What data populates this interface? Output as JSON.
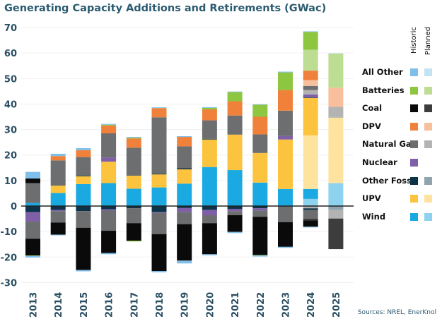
{
  "chart_data": {
    "type": "bar",
    "stacked": true,
    "title": "Generating Capacity Additions and Retirements (GWac)",
    "xlabel": "",
    "ylabel": "",
    "ylim": [
      -30,
      70
    ],
    "yticks": [
      -30,
      -20,
      -10,
      0,
      10,
      20,
      30,
      40,
      50,
      60,
      70
    ],
    "grid": true,
    "legend_position": "right",
    "legend_columns": [
      "Historic",
      "Planned"
    ],
    "categories": [
      "2013",
      "2014",
      "2015",
      "2016",
      "2017",
      "2018",
      "2019",
      "2020",
      "2021",
      "2022",
      "2023",
      "2024",
      "2025"
    ],
    "technologies": [
      {
        "name": "All Other",
        "historic_color": "#7fbfea",
        "planned_color": "#c3e3f5"
      },
      {
        "name": "Batteries",
        "historic_color": "#8dc63f",
        "planned_color": "#bddd92"
      },
      {
        "name": "Coal",
        "historic_color": "#0a0a0a",
        "planned_color": "#3d3d3d"
      },
      {
        "name": "DPV",
        "historic_color": "#f0813a",
        "planned_color": "#f7bf9b"
      },
      {
        "name": "Natural Gas",
        "historic_color": "#6d6e70",
        "planned_color": "#b3b3b3"
      },
      {
        "name": "Nuclear",
        "historic_color": "#7f5fa8",
        "planned_color": null
      },
      {
        "name": "Other Fossil",
        "historic_color": "#0d3349",
        "planned_color": "#8ea4ae"
      },
      {
        "name": "UPV",
        "historic_color": "#fcc43e",
        "planned_color": "#fde39e"
      },
      {
        "name": "Wind",
        "historic_color": "#1aa9e1",
        "planned_color": "#8dd3f0"
      }
    ],
    "additions": [
      {
        "tech": "Wind",
        "status": "Planned",
        "values": [
          0,
          0,
          0,
          0,
          0,
          0,
          0,
          0,
          0,
          0,
          0,
          2.8,
          9.0
        ]
      },
      {
        "tech": "Wind",
        "status": "Historic",
        "values": [
          1.2,
          5.1,
          8.6,
          9.0,
          6.8,
          7.3,
          8.8,
          15.3,
          14.1,
          9.2,
          6.7,
          3.9,
          0
        ]
      },
      {
        "tech": "UPV",
        "status": "Planned",
        "values": [
          0,
          0,
          0,
          0,
          0,
          0,
          0,
          0,
          0,
          0,
          0,
          21.0,
          25.7
        ]
      },
      {
        "tech": "UPV",
        "status": "Historic",
        "values": [
          0,
          2.9,
          3.1,
          8.4,
          5.1,
          5.1,
          5.6,
          10.8,
          13.9,
          11.6,
          19.4,
          14.7,
          0
        ]
      },
      {
        "tech": "Other Fossil",
        "status": "Planned",
        "values": [
          0,
          0,
          0,
          0,
          0,
          0,
          0,
          0,
          0,
          0,
          0,
          0,
          0.2
        ]
      },
      {
        "tech": "Other Fossil",
        "status": "Historic",
        "values": [
          0,
          0,
          0.3,
          0,
          0,
          0.2,
          0.4,
          0.2,
          0,
          0,
          0,
          0.2,
          0
        ]
      },
      {
        "tech": "Nuclear",
        "status": "Historic",
        "values": [
          0,
          0,
          0,
          1.6,
          0,
          0,
          0,
          0,
          0,
          0,
          1.4,
          1.2,
          0
        ]
      },
      {
        "tech": "Natural Gas",
        "status": "Planned",
        "values": [
          0,
          0,
          0,
          0,
          0,
          0,
          0,
          0,
          0,
          0,
          0,
          1.7,
          4.0
        ]
      },
      {
        "tech": "Natural Gas",
        "status": "Historic",
        "values": [
          7.8,
          9.9,
          7.2,
          9.5,
          11.0,
          22.2,
          8.6,
          7.3,
          7.5,
          7.3,
          9.9,
          1.6,
          0
        ]
      },
      {
        "tech": "Coal",
        "status": "Historic",
        "values": [
          1.8,
          0,
          0,
          0,
          0,
          0,
          0,
          0,
          0,
          0,
          0,
          0,
          0
        ]
      },
      {
        "tech": "DPV",
        "status": "Planned",
        "values": [
          0,
          0,
          0,
          0,
          0,
          0,
          0,
          0,
          0,
          0,
          0,
          2.3,
          7.5
        ]
      },
      {
        "tech": "DPV",
        "status": "Historic",
        "values": [
          0,
          1.7,
          2.7,
          3.1,
          3.6,
          3.6,
          3.7,
          4.3,
          5.6,
          6.9,
          8.1,
          3.7,
          0
        ]
      },
      {
        "tech": "Batteries",
        "status": "Planned",
        "values": [
          0,
          0,
          0,
          0,
          0,
          0,
          0,
          0,
          0,
          0,
          0,
          8.2,
          13.4
        ]
      },
      {
        "tech": "Batteries",
        "status": "Historic",
        "values": [
          0,
          0,
          0,
          0.3,
          0.3,
          0,
          0,
          0.6,
          3.6,
          4.7,
          6.9,
          7.0,
          0
        ]
      },
      {
        "tech": "All Other",
        "status": "Planned",
        "values": [
          0,
          0,
          0,
          0,
          0,
          0,
          0,
          0,
          0,
          0,
          0,
          0,
          0.2
        ]
      },
      {
        "tech": "All Other",
        "status": "Historic",
        "values": [
          2.6,
          0.9,
          0.8,
          0.3,
          0.3,
          0.3,
          0.3,
          0.3,
          0.2,
          0.2,
          0.3,
          0.2,
          0
        ]
      }
    ],
    "retirements": [
      {
        "tech": "Other Fossil",
        "status": "Planned",
        "values": [
          0,
          0,
          0,
          0,
          0,
          0,
          0,
          0,
          0,
          0,
          0,
          -0.4,
          -1.5
        ]
      },
      {
        "tech": "Natural Gas",
        "status": "Planned",
        "values": [
          0,
          0,
          0,
          0,
          0,
          0,
          0,
          0,
          0,
          0,
          0,
          -0.5,
          -3.4
        ]
      },
      {
        "tech": "Other Fossil",
        "status": "Historic",
        "values": [
          -2.4,
          -1.5,
          -2.0,
          -1.3,
          -0.9,
          -2.4,
          -0.8,
          -1.5,
          -1.1,
          -0.9,
          0,
          -0.6,
          0
        ]
      },
      {
        "tech": "Nuclear",
        "status": "Historic",
        "values": [
          -3.7,
          -0.5,
          0,
          -0.5,
          0,
          -0.3,
          -1.5,
          -2.1,
          -0.9,
          -0.8,
          0,
          0,
          0
        ]
      },
      {
        "tech": "Natural Gas",
        "status": "Historic",
        "values": [
          -6.7,
          -4.5,
          -6.5,
          -7.9,
          -5.8,
          -8.3,
          -4.8,
          -3.1,
          -1.6,
          -2.5,
          -6.3,
          -3.4,
          0
        ]
      },
      {
        "tech": "Coal",
        "status": "Planned",
        "values": [
          0,
          0,
          0,
          0,
          0,
          0,
          0,
          0,
          0,
          0,
          0,
          -0.7,
          -12.0
        ]
      },
      {
        "tech": "Coal",
        "status": "Historic",
        "values": [
          -6.6,
          -4.7,
          -16.6,
          -8.7,
          -6.9,
          -14.5,
          -14.3,
          -12.2,
          -6.5,
          -15.0,
          -9.7,
          -2.5,
          0
        ]
      },
      {
        "tech": "Batteries",
        "status": "Historic",
        "values": [
          -0.2,
          0,
          0,
          0,
          -0.3,
          0,
          0,
          0,
          0,
          -0.2,
          0,
          0,
          0
        ]
      },
      {
        "tech": "All Other",
        "status": "Historic",
        "values": [
          -0.6,
          -0.3,
          -0.5,
          -0.5,
          0,
          -0.5,
          -1.1,
          -0.4,
          -0.5,
          -0.4,
          -0.4,
          -0.3,
          0
        ]
      }
    ],
    "source_note": "Sources: NREL, EnerKnol"
  }
}
